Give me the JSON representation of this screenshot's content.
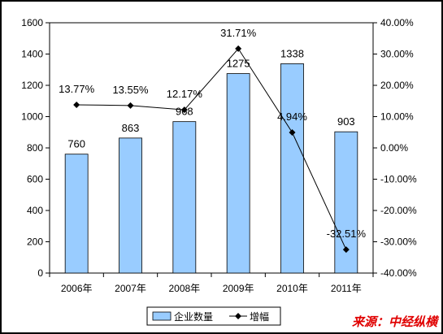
{
  "chart_data": {
    "type": "bar",
    "categories": [
      "2006年",
      "2007年",
      "2008年",
      "2009年",
      "2010年",
      "2011年"
    ],
    "series": [
      {
        "name": "企业数量",
        "type": "bar",
        "axis": "left",
        "values": [
          760,
          863,
          968,
          1275,
          1338,
          903
        ],
        "color": "#99ccff"
      },
      {
        "name": "增幅",
        "type": "line",
        "axis": "right",
        "values": [
          13.77,
          13.55,
          12.17,
          31.71,
          4.94,
          -32.51
        ],
        "color": "#000000"
      }
    ],
    "bar_labels": [
      "760",
      "863",
      "968",
      "1275",
      "1338",
      "903"
    ],
    "line_labels": [
      "13.77%",
      "13.55%",
      "12.17%",
      "31.71%",
      "4.94%",
      "-32.51%"
    ],
    "y_left": {
      "min": 0,
      "max": 1600,
      "ticks": [
        "0",
        "200",
        "400",
        "600",
        "800",
        "1000",
        "1200",
        "1400",
        "1600"
      ]
    },
    "y_right": {
      "min": -40,
      "max": 40,
      "ticks": [
        "-40.00%",
        "-30.00%",
        "-20.00%",
        "-10.00%",
        "0.00%",
        "10.00%",
        "20.00%",
        "30.00%",
        "40.00%"
      ]
    },
    "legend_position": "bottom",
    "grid": false,
    "source": "来源：中经纵横"
  }
}
